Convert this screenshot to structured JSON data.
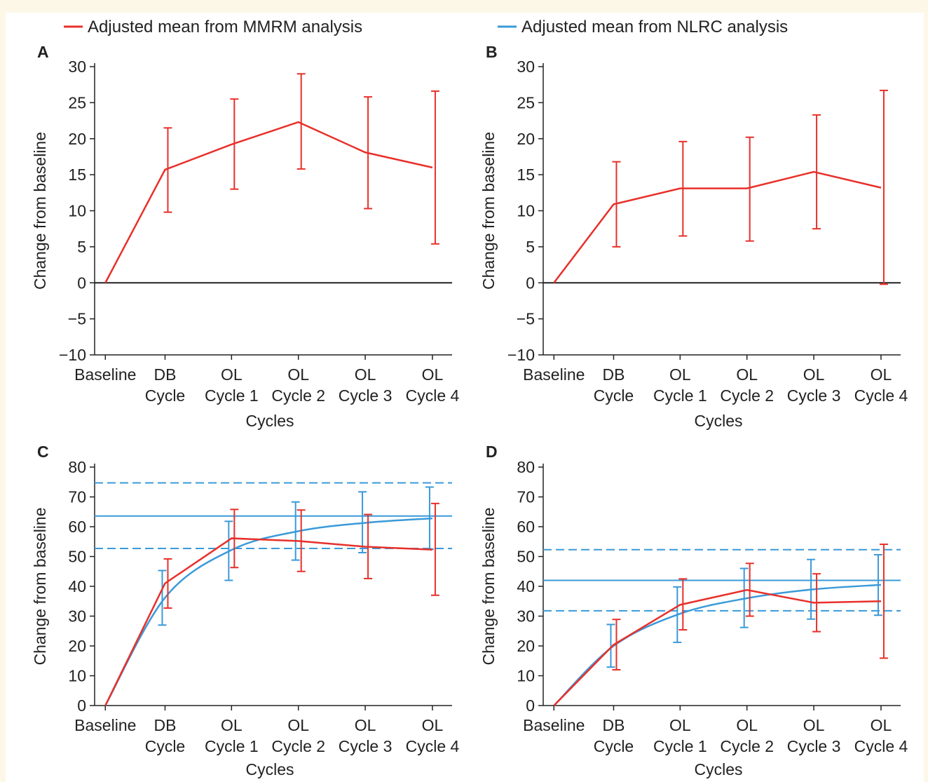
{
  "legend": {
    "items": [
      {
        "label": "Adjusted mean from MMRM analysis",
        "color": "#e8302a"
      },
      {
        "label": "Adjusted mean from NLRC analysis",
        "color": "#3a9ad9"
      }
    ]
  },
  "colors": {
    "mmrm": "#e8302a",
    "nlrc": "#3a9ad9",
    "axis": "#222222"
  },
  "chart_data": [
    {
      "panel": "A",
      "type": "line",
      "categories": [
        [
          "Baseline"
        ],
        [
          "DB",
          "Cycle"
        ],
        [
          "OL",
          "Cycle 1"
        ],
        [
          "OL",
          "Cycle 2"
        ],
        [
          "OL",
          "Cycle 3"
        ],
        [
          "OL",
          "Cycle 4"
        ]
      ],
      "xlabel": "Cycles",
      "ylabel": "Change from baseline",
      "ylim": [
        -10,
        30
      ],
      "yticks": [
        30,
        25,
        20,
        15,
        10,
        5,
        0,
        -5,
        -10
      ],
      "ytick_labels": [
        "30",
        "25",
        "20",
        "15",
        "10",
        "5",
        "0",
        "−5",
        "−10"
      ],
      "zero_line": true,
      "series": [
        {
          "key": "mmrm",
          "values": [
            0,
            15.7,
            19.2,
            22.3,
            18.1,
            16.0
          ],
          "error_low": [
            null,
            9.8,
            13.0,
            15.8,
            10.3,
            5.4
          ],
          "error_high": [
            null,
            21.5,
            25.5,
            29.0,
            25.8,
            26.6
          ]
        }
      ]
    },
    {
      "panel": "B",
      "type": "line",
      "categories": [
        [
          "Baseline"
        ],
        [
          "DB",
          "Cycle"
        ],
        [
          "OL",
          "Cycle 1"
        ],
        [
          "OL",
          "Cycle 2"
        ],
        [
          "OL",
          "Cycle 3"
        ],
        [
          "OL",
          "Cycle 4"
        ]
      ],
      "xlabel": "Cycles",
      "ylabel": "Change from baseline",
      "ylim": [
        -10,
        30
      ],
      "yticks": [
        30,
        25,
        20,
        15,
        10,
        5,
        0,
        -5,
        -10
      ],
      "ytick_labels": [
        "30",
        "25",
        "20",
        "15",
        "10",
        "5",
        "0",
        "−5",
        "−10"
      ],
      "zero_line": true,
      "series": [
        {
          "key": "mmrm",
          "values": [
            0,
            10.9,
            13.1,
            13.1,
            15.4,
            13.2
          ],
          "error_low": [
            null,
            5.0,
            6.5,
            5.8,
            7.5,
            -0.2
          ],
          "error_high": [
            null,
            16.8,
            19.6,
            20.2,
            23.3,
            26.7
          ]
        }
      ]
    },
    {
      "panel": "C",
      "type": "line",
      "categories": [
        [
          "Baseline"
        ],
        [
          "DB",
          "Cycle"
        ],
        [
          "OL",
          "Cycle 1"
        ],
        [
          "OL",
          "Cycle 2"
        ],
        [
          "OL",
          "Cycle 3"
        ],
        [
          "OL",
          "Cycle 4"
        ]
      ],
      "xlabel": "Cycles",
      "ylabel": "Change from baseline",
      "ylim": [
        0,
        80
      ],
      "yticks": [
        80,
        70,
        60,
        50,
        40,
        30,
        20,
        10,
        0
      ],
      "ytick_labels": [
        "80",
        "70",
        "60",
        "50",
        "40",
        "30",
        "20",
        "10",
        "0"
      ],
      "zero_line": false,
      "asymptote": {
        "value": 63.6,
        "ci_low": 52.7,
        "ci_high": 74.7
      },
      "series": [
        {
          "key": "nlrc",
          "curve": "smooth",
          "values": [
            0,
            36.2,
            52.2,
            58.5,
            61.3,
            62.8
          ],
          "error_low": [
            null,
            27.0,
            42.0,
            48.8,
            51.3,
            52.5
          ],
          "error_high": [
            null,
            45.3,
            61.8,
            68.3,
            71.7,
            73.3
          ]
        },
        {
          "key": "mmrm",
          "values": [
            0,
            41.0,
            56.1,
            55.2,
            53.3,
            52.3
          ],
          "error_low": [
            null,
            32.7,
            46.3,
            45.0,
            42.6,
            37.0
          ],
          "error_high": [
            null,
            49.2,
            65.8,
            65.6,
            64.1,
            67.8
          ]
        }
      ]
    },
    {
      "panel": "D",
      "type": "line",
      "categories": [
        [
          "Baseline"
        ],
        [
          "DB",
          "Cycle"
        ],
        [
          "OL",
          "Cycle 1"
        ],
        [
          "OL",
          "Cycle 2"
        ],
        [
          "OL",
          "Cycle 3"
        ],
        [
          "OL",
          "Cycle 4"
        ]
      ],
      "xlabel": "Cycles",
      "ylabel": "Change from baseline",
      "ylim": [
        0,
        80
      ],
      "yticks": [
        80,
        70,
        60,
        50,
        40,
        30,
        20,
        10,
        0
      ],
      "ytick_labels": [
        "80",
        "70",
        "60",
        "50",
        "40",
        "30",
        "20",
        "10",
        "0"
      ],
      "zero_line": false,
      "asymptote": {
        "value": 42.0,
        "ci_low": 31.8,
        "ci_high": 52.3
      },
      "series": [
        {
          "key": "nlrc",
          "curve": "smooth",
          "values": [
            0,
            20.0,
            30.8,
            36.0,
            39.0,
            40.5
          ],
          "error_low": [
            null,
            12.9,
            21.2,
            26.2,
            29.0,
            30.3
          ],
          "error_high": [
            null,
            27.2,
            39.8,
            46.0,
            49.0,
            50.6
          ]
        },
        {
          "key": "mmrm",
          "values": [
            0,
            20.4,
            33.8,
            38.8,
            34.5,
            35.0
          ],
          "error_low": [
            null,
            12.0,
            25.4,
            30.0,
            24.8,
            15.9
          ],
          "error_high": [
            null,
            28.9,
            42.5,
            47.7,
            44.2,
            54.1
          ]
        }
      ]
    }
  ]
}
